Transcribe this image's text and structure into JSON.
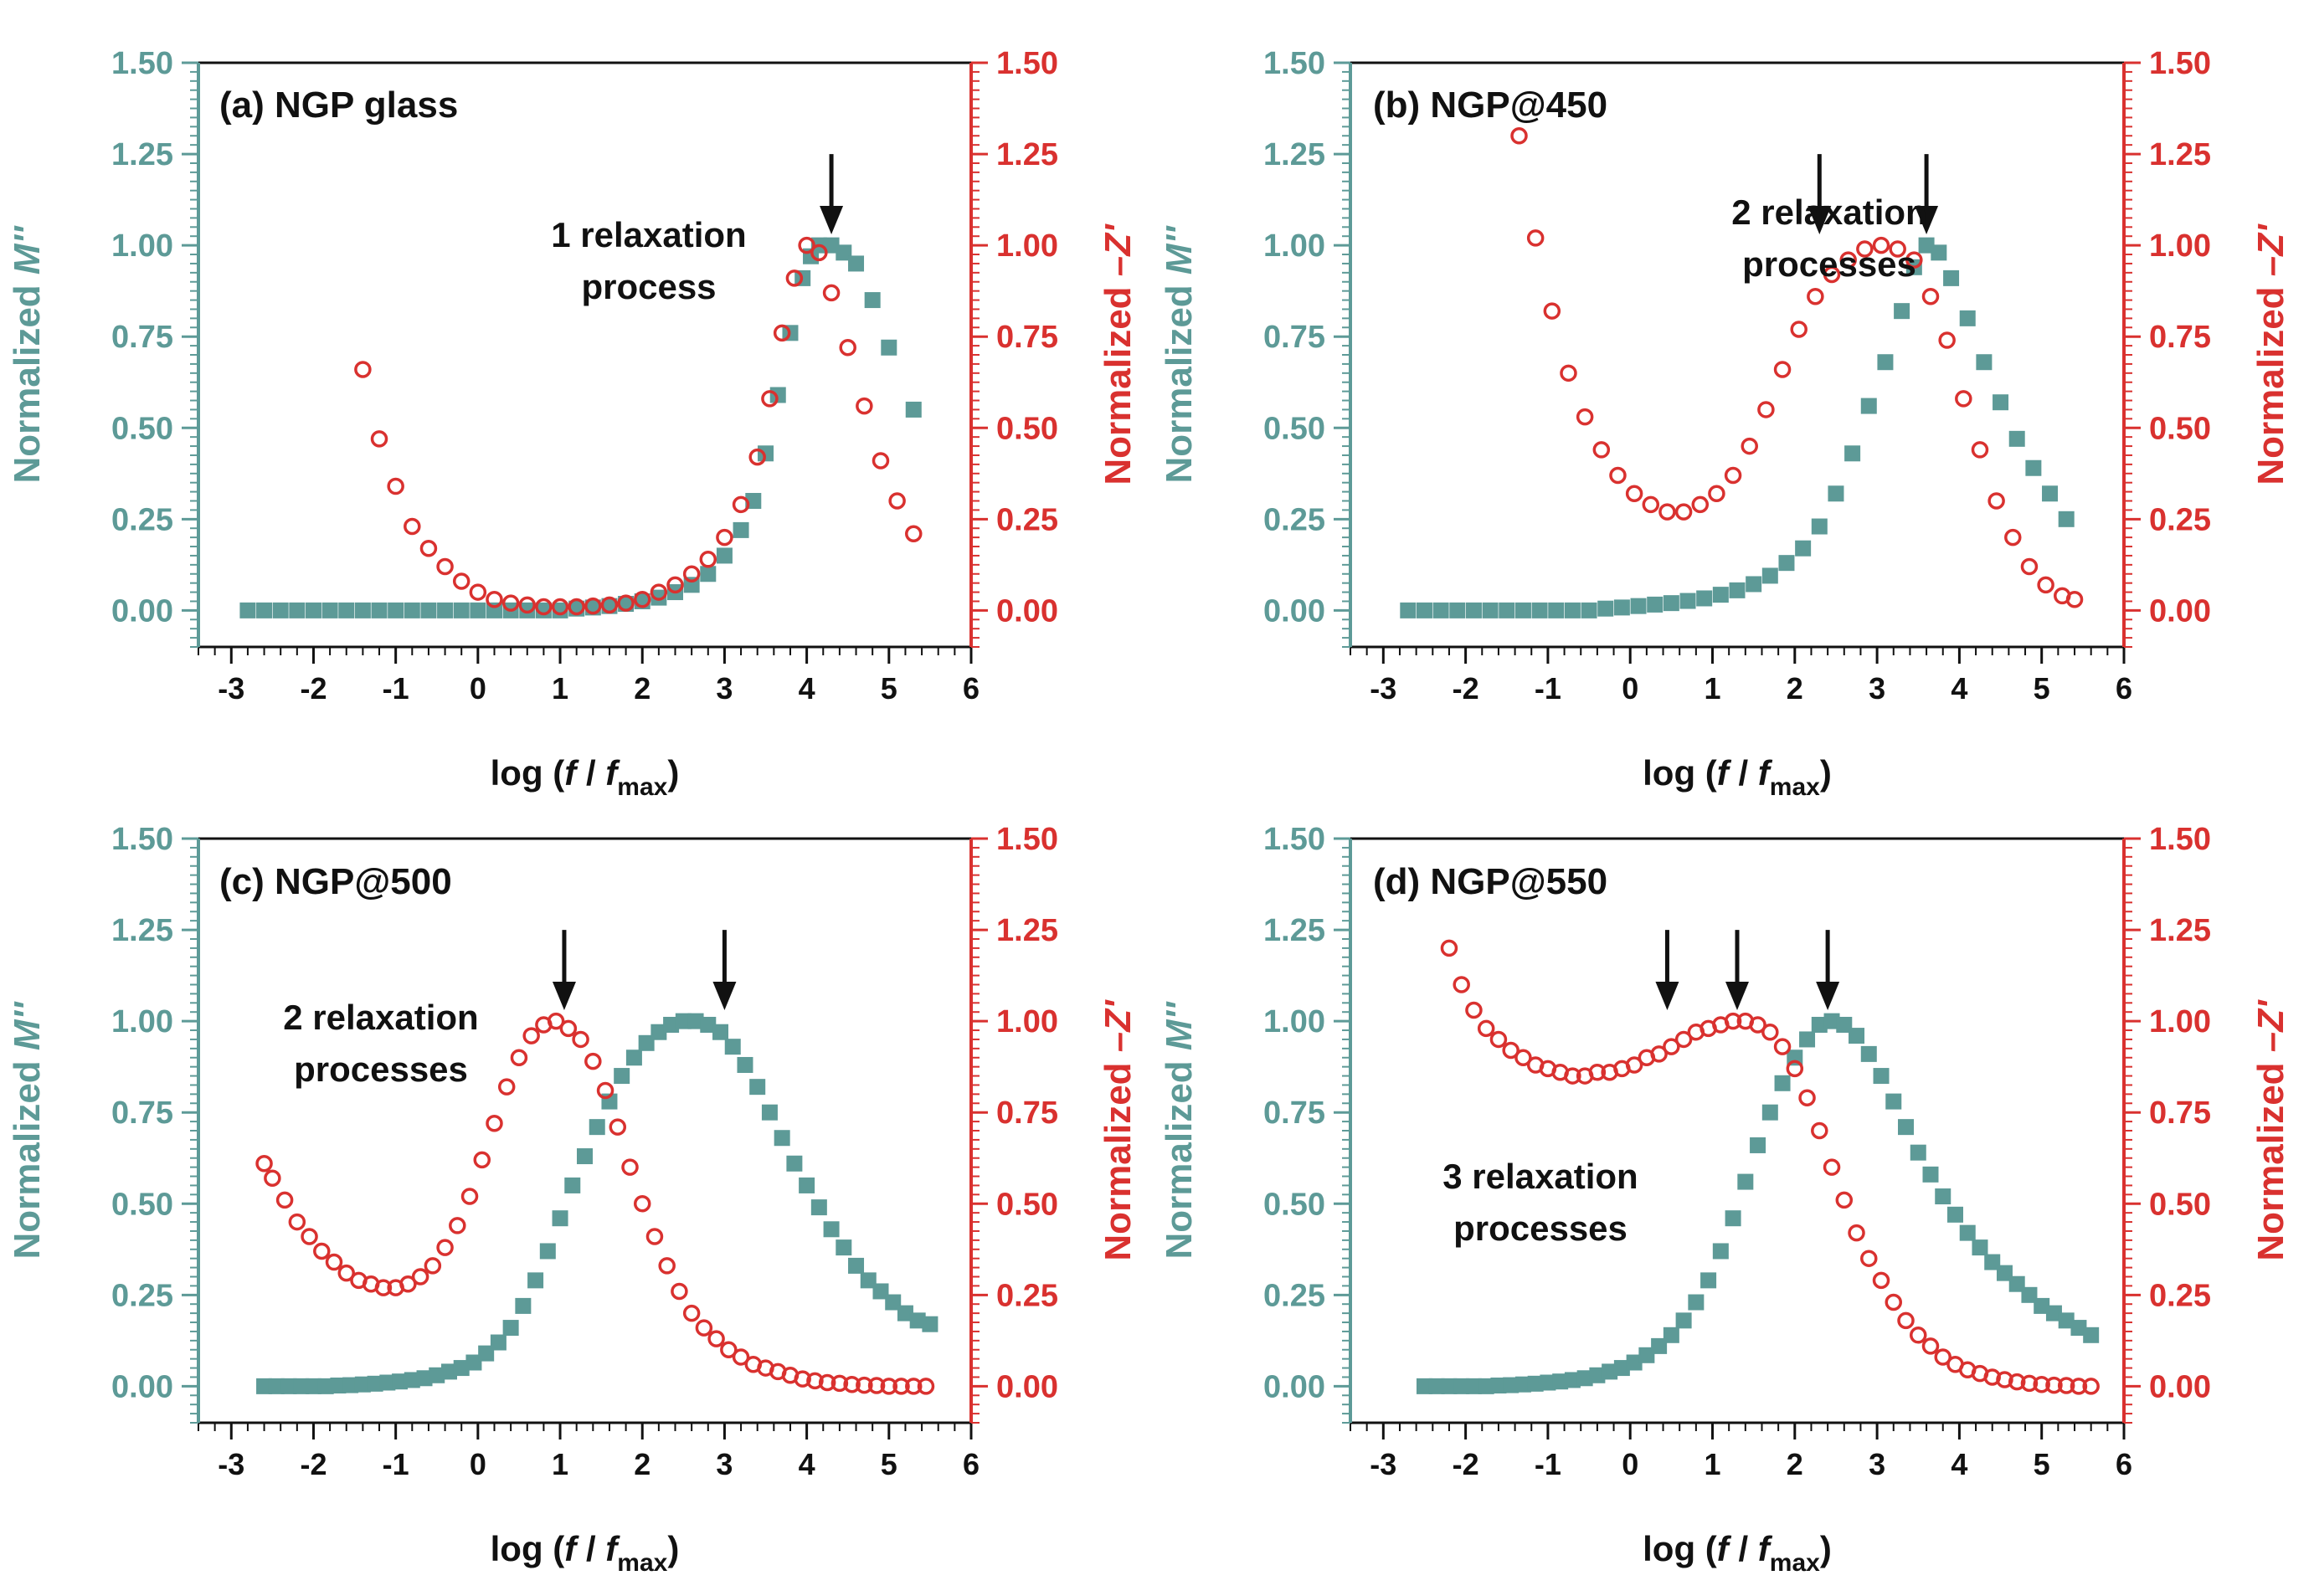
{
  "colors": {
    "teal": "#5d9a97",
    "red": "#d9312f",
    "axis": "#111111"
  },
  "chart_data": [
    {
      "type": "scatter",
      "id": "a",
      "title": "(a) NGP glass",
      "xlabel": {
        "prefix": "log (",
        "f1": "f",
        "sep": " / ",
        "f2": "f",
        "sub": "max",
        "suffix": ")"
      },
      "ylabel_left": {
        "text": "Normalized ",
        "italic": "M''"
      },
      "ylabel_right": {
        "text": "Normalized ",
        "italic": "–Z'"
      },
      "xlim": [
        -3.4,
        6
      ],
      "ylim": [
        -0.1,
        1.5
      ],
      "xticks": [
        "-3",
        "-2",
        "-1",
        "0",
        "1",
        "2",
        "3",
        "4",
        "5",
        "6"
      ],
      "yticks": [
        "0.00",
        "0.25",
        "0.50",
        "0.75",
        "1.00",
        "1.25",
        "1.50"
      ],
      "annotations": [
        {
          "lines": [
            "1 relaxation",
            "process"
          ]
        }
      ],
      "arrows": [
        4.3
      ],
      "series": [
        {
          "name": "Normalized M''",
          "axis": "left",
          "marker": "square",
          "x": [
            -2.8,
            -2.6,
            -2.4,
            -2.2,
            -2.0,
            -1.8,
            -1.6,
            -1.4,
            -1.2,
            -1.0,
            -0.8,
            -0.6,
            -0.4,
            -0.2,
            0.0,
            0.2,
            0.4,
            0.6,
            0.8,
            1.0,
            1.2,
            1.4,
            1.6,
            1.8,
            2.0,
            2.2,
            2.4,
            2.6,
            2.8,
            3.0,
            3.2,
            3.35,
            3.5,
            3.65,
            3.8,
            3.95,
            4.05,
            4.15,
            4.3,
            4.45,
            4.6,
            4.8,
            5.0,
            5.3
          ],
          "y": [
            0.0,
            0.0,
            0.0,
            0.0,
            0.0,
            0.0,
            0.0,
            0.0,
            0.0,
            0.0,
            0.0,
            0.0,
            0.0,
            0.0,
            0.0,
            0.0,
            0.0,
            0.0,
            0.0,
            0.0,
            0.005,
            0.008,
            0.012,
            0.018,
            0.025,
            0.035,
            0.05,
            0.07,
            0.1,
            0.15,
            0.22,
            0.3,
            0.43,
            0.59,
            0.76,
            0.91,
            0.97,
            1.0,
            1.0,
            0.98,
            0.95,
            0.85,
            0.72,
            0.55
          ]
        },
        {
          "name": "Normalized –Z'",
          "axis": "right",
          "marker": "circle",
          "x": [
            -1.4,
            -1.2,
            -1.0,
            -0.8,
            -0.6,
            -0.4,
            -0.2,
            0.0,
            0.2,
            0.4,
            0.6,
            0.8,
            1.0,
            1.2,
            1.4,
            1.6,
            1.8,
            2.0,
            2.2,
            2.4,
            2.6,
            2.8,
            3.0,
            3.2,
            3.4,
            3.55,
            3.7,
            3.85,
            4.0,
            4.15,
            4.3,
            4.5,
            4.7,
            4.9,
            5.1,
            5.3
          ],
          "y": [
            0.66,
            0.47,
            0.34,
            0.23,
            0.17,
            0.12,
            0.08,
            0.05,
            0.03,
            0.02,
            0.015,
            0.01,
            0.01,
            0.01,
            0.012,
            0.015,
            0.02,
            0.03,
            0.05,
            0.07,
            0.1,
            0.14,
            0.2,
            0.29,
            0.42,
            0.58,
            0.76,
            0.91,
            1.0,
            0.98,
            0.87,
            0.72,
            0.56,
            0.41,
            0.3,
            0.21
          ]
        }
      ]
    },
    {
      "type": "scatter",
      "id": "b",
      "title": "(b) NGP@450",
      "xlabel": {
        "prefix": "log (",
        "f1": "f",
        "sep": " / ",
        "f2": "f",
        "sub": "max",
        "suffix": ")"
      },
      "ylabel_left": {
        "text": "Normalized ",
        "italic": "M''"
      },
      "ylabel_right": {
        "text": "Normalized ",
        "italic": "–Z'"
      },
      "xlim": [
        -3.4,
        6
      ],
      "ylim": [
        -0.1,
        1.5
      ],
      "xticks": [
        "-3",
        "-2",
        "-1",
        "0",
        "1",
        "2",
        "3",
        "4",
        "5",
        "6"
      ],
      "yticks": [
        "0.00",
        "0.25",
        "0.50",
        "0.75",
        "1.00",
        "1.25",
        "1.50"
      ],
      "annotations": [
        {
          "lines": [
            "2 relaxation",
            "processes"
          ]
        }
      ],
      "arrows": [
        2.3,
        3.6
      ],
      "series": [
        {
          "name": "Normalized M''",
          "axis": "left",
          "marker": "square",
          "x": [
            -2.7,
            -2.5,
            -2.3,
            -2.1,
            -1.9,
            -1.7,
            -1.5,
            -1.3,
            -1.1,
            -0.9,
            -0.7,
            -0.5,
            -0.3,
            -0.1,
            0.1,
            0.3,
            0.5,
            0.7,
            0.9,
            1.1,
            1.3,
            1.5,
            1.7,
            1.9,
            2.1,
            2.3,
            2.5,
            2.7,
            2.9,
            3.1,
            3.3,
            3.45,
            3.6,
            3.75,
            3.9,
            4.1,
            4.3,
            4.5,
            4.7,
            4.9,
            5.1,
            5.3
          ],
          "y": [
            0.0,
            0.0,
            0.0,
            0.0,
            0.0,
            0.0,
            0.0,
            0.0,
            0.0,
            0.0,
            0.0,
            0.0,
            0.005,
            0.008,
            0.012,
            0.016,
            0.02,
            0.026,
            0.033,
            0.043,
            0.055,
            0.072,
            0.095,
            0.13,
            0.17,
            0.23,
            0.32,
            0.43,
            0.56,
            0.68,
            0.82,
            0.94,
            1.0,
            0.98,
            0.91,
            0.8,
            0.68,
            0.57,
            0.47,
            0.39,
            0.32,
            0.25
          ]
        },
        {
          "name": "Normalized –Z'",
          "axis": "right",
          "marker": "circle",
          "x": [
            -1.35,
            -1.15,
            -0.95,
            -0.75,
            -0.55,
            -0.35,
            -0.15,
            0.05,
            0.25,
            0.45,
            0.65,
            0.85,
            1.05,
            1.25,
            1.45,
            1.65,
            1.85,
            2.05,
            2.25,
            2.45,
            2.65,
            2.85,
            3.05,
            3.25,
            3.45,
            3.65,
            3.85,
            4.05,
            4.25,
            4.45,
            4.65,
            4.85,
            5.05,
            5.25,
            5.4
          ],
          "y": [
            1.3,
            1.02,
            0.82,
            0.65,
            0.53,
            0.44,
            0.37,
            0.32,
            0.29,
            0.27,
            0.27,
            0.29,
            0.32,
            0.37,
            0.45,
            0.55,
            0.66,
            0.77,
            0.86,
            0.92,
            0.96,
            0.99,
            1.0,
            0.99,
            0.96,
            0.86,
            0.74,
            0.58,
            0.44,
            0.3,
            0.2,
            0.12,
            0.07,
            0.04,
            0.03
          ]
        }
      ]
    },
    {
      "type": "scatter",
      "id": "c",
      "title": "(c) NGP@500",
      "xlabel": {
        "prefix": "log (",
        "f1": "f",
        "sep": " / ",
        "f2": "f",
        "sub": "max",
        "suffix": ")"
      },
      "ylabel_left": {
        "text": "Normalized ",
        "italic": "M''"
      },
      "ylabel_right": {
        "text": "Normalized ",
        "italic": "–Z'"
      },
      "xlim": [
        -3.4,
        6
      ],
      "ylim": [
        -0.1,
        1.5
      ],
      "xticks": [
        "-3",
        "-2",
        "-1",
        "0",
        "1",
        "2",
        "3",
        "4",
        "5",
        "6"
      ],
      "yticks": [
        "0.00",
        "0.25",
        "0.50",
        "0.75",
        "1.00",
        "1.25",
        "1.50"
      ],
      "annotations": [
        {
          "lines": [
            "2 relaxation",
            "processes"
          ]
        }
      ],
      "arrows": [
        1.05,
        3.0
      ],
      "series": [
        {
          "name": "Normalized M''",
          "axis": "left",
          "marker": "square",
          "x": [
            -2.6,
            -2.45,
            -2.3,
            -2.15,
            -2.0,
            -1.85,
            -1.7,
            -1.55,
            -1.4,
            -1.25,
            -1.1,
            -0.95,
            -0.8,
            -0.65,
            -0.5,
            -0.35,
            -0.2,
            -0.05,
            0.1,
            0.25,
            0.4,
            0.55,
            0.7,
            0.85,
            1.0,
            1.15,
            1.3,
            1.45,
            1.6,
            1.75,
            1.9,
            2.05,
            2.2,
            2.35,
            2.5,
            2.65,
            2.8,
            2.95,
            3.1,
            3.25,
            3.4,
            3.55,
            3.7,
            3.85,
            4.0,
            4.15,
            4.3,
            4.45,
            4.6,
            4.75,
            4.9,
            5.05,
            5.2,
            5.35,
            5.5
          ],
          "y": [
            0.0,
            0.0,
            0.0,
            0.0,
            0.0,
            0.0,
            0.002,
            0.003,
            0.005,
            0.007,
            0.01,
            0.013,
            0.017,
            0.022,
            0.03,
            0.04,
            0.05,
            0.065,
            0.09,
            0.12,
            0.16,
            0.22,
            0.29,
            0.37,
            0.46,
            0.55,
            0.63,
            0.71,
            0.78,
            0.85,
            0.9,
            0.94,
            0.97,
            0.99,
            1.0,
            1.0,
            0.99,
            0.97,
            0.93,
            0.88,
            0.82,
            0.75,
            0.68,
            0.61,
            0.55,
            0.49,
            0.43,
            0.38,
            0.33,
            0.29,
            0.26,
            0.23,
            0.2,
            0.18,
            0.17
          ]
        },
        {
          "name": "Normalized –Z'",
          "axis": "right",
          "marker": "circle",
          "x": [
            -2.6,
            -2.5,
            -2.35,
            -2.2,
            -2.05,
            -1.9,
            -1.75,
            -1.6,
            -1.45,
            -1.3,
            -1.15,
            -1.0,
            -0.85,
            -0.7,
            -0.55,
            -0.4,
            -0.25,
            -0.1,
            0.05,
            0.2,
            0.35,
            0.5,
            0.65,
            0.8,
            0.95,
            1.1,
            1.25,
            1.4,
            1.55,
            1.7,
            1.85,
            2.0,
            2.15,
            2.3,
            2.45,
            2.6,
            2.75,
            2.9,
            3.05,
            3.2,
            3.35,
            3.5,
            3.65,
            3.8,
            3.95,
            4.1,
            4.25,
            4.4,
            4.55,
            4.7,
            4.85,
            5.0,
            5.15,
            5.3,
            5.45
          ],
          "y": [
            0.61,
            0.57,
            0.51,
            0.45,
            0.41,
            0.37,
            0.34,
            0.31,
            0.29,
            0.28,
            0.27,
            0.27,
            0.28,
            0.3,
            0.33,
            0.38,
            0.44,
            0.52,
            0.62,
            0.72,
            0.82,
            0.9,
            0.96,
            0.99,
            1.0,
            0.98,
            0.95,
            0.89,
            0.81,
            0.71,
            0.6,
            0.5,
            0.41,
            0.33,
            0.26,
            0.2,
            0.16,
            0.13,
            0.1,
            0.08,
            0.06,
            0.05,
            0.04,
            0.03,
            0.02,
            0.015,
            0.01,
            0.008,
            0.005,
            0.003,
            0.002,
            0.0,
            0.0,
            0.0,
            0.0
          ]
        }
      ]
    },
    {
      "type": "scatter",
      "id": "d",
      "title": "(d) NGP@550",
      "xlabel": {
        "prefix": "log (",
        "f1": "f",
        "sep": " / ",
        "f2": "f",
        "sub": "max",
        "suffix": ")"
      },
      "ylabel_left": {
        "text": "Normalized ",
        "italic": "M''"
      },
      "ylabel_right": {
        "text": "Normalized ",
        "italic": "–Z'"
      },
      "xlim": [
        -3.4,
        6
      ],
      "ylim": [
        -0.1,
        1.5
      ],
      "xticks": [
        "-3",
        "-2",
        "-1",
        "0",
        "1",
        "2",
        "3",
        "4",
        "5",
        "6"
      ],
      "yticks": [
        "0.00",
        "0.25",
        "0.50",
        "0.75",
        "1.00",
        "1.25",
        "1.50"
      ],
      "annotations": [
        {
          "lines": [
            "3 relaxation",
            "processes"
          ]
        }
      ],
      "arrows": [
        0.45,
        1.3,
        2.4
      ],
      "series": [
        {
          "name": "Normalized M''",
          "axis": "left",
          "marker": "square",
          "x": [
            -2.5,
            -2.35,
            -2.2,
            -2.05,
            -1.9,
            -1.75,
            -1.6,
            -1.45,
            -1.3,
            -1.15,
            -1.0,
            -0.85,
            -0.7,
            -0.55,
            -0.4,
            -0.25,
            -0.1,
            0.05,
            0.2,
            0.35,
            0.5,
            0.65,
            0.8,
            0.95,
            1.1,
            1.25,
            1.4,
            1.55,
            1.7,
            1.85,
            2.0,
            2.15,
            2.3,
            2.45,
            2.6,
            2.75,
            2.9,
            3.05,
            3.2,
            3.35,
            3.5,
            3.65,
            3.8,
            3.95,
            4.1,
            4.25,
            4.4,
            4.55,
            4.7,
            4.85,
            5.0,
            5.15,
            5.3,
            5.45,
            5.6
          ],
          "y": [
            0.0,
            0.0,
            0.0,
            0.0,
            0.0,
            0.0,
            0.002,
            0.003,
            0.005,
            0.007,
            0.01,
            0.013,
            0.017,
            0.022,
            0.03,
            0.04,
            0.05,
            0.065,
            0.085,
            0.11,
            0.14,
            0.18,
            0.23,
            0.29,
            0.37,
            0.46,
            0.56,
            0.66,
            0.75,
            0.83,
            0.9,
            0.95,
            0.99,
            1.0,
            0.99,
            0.96,
            0.91,
            0.85,
            0.78,
            0.71,
            0.64,
            0.58,
            0.52,
            0.47,
            0.42,
            0.38,
            0.34,
            0.31,
            0.28,
            0.25,
            0.22,
            0.2,
            0.18,
            0.16,
            0.14
          ]
        },
        {
          "name": "Normalized –Z'",
          "axis": "right",
          "marker": "circle",
          "x": [
            -2.2,
            -2.05,
            -1.9,
            -1.75,
            -1.6,
            -1.45,
            -1.3,
            -1.15,
            -1.0,
            -0.85,
            -0.7,
            -0.55,
            -0.4,
            -0.25,
            -0.1,
            0.05,
            0.2,
            0.35,
            0.5,
            0.65,
            0.8,
            0.95,
            1.1,
            1.25,
            1.4,
            1.55,
            1.7,
            1.85,
            2.0,
            2.15,
            2.3,
            2.45,
            2.6,
            2.75,
            2.9,
            3.05,
            3.2,
            3.35,
            3.5,
            3.65,
            3.8,
            3.95,
            4.1,
            4.25,
            4.4,
            4.55,
            4.7,
            4.85,
            5.0,
            5.15,
            5.3,
            5.45,
            5.6
          ],
          "y": [
            1.2,
            1.1,
            1.03,
            0.98,
            0.95,
            0.92,
            0.9,
            0.88,
            0.87,
            0.86,
            0.85,
            0.85,
            0.86,
            0.86,
            0.87,
            0.88,
            0.9,
            0.91,
            0.93,
            0.95,
            0.97,
            0.98,
            0.99,
            1.0,
            1.0,
            0.99,
            0.97,
            0.93,
            0.87,
            0.79,
            0.7,
            0.6,
            0.51,
            0.42,
            0.35,
            0.29,
            0.23,
            0.18,
            0.14,
            0.11,
            0.08,
            0.06,
            0.045,
            0.035,
            0.025,
            0.018,
            0.012,
            0.008,
            0.005,
            0.003,
            0.002,
            0.0,
            0.0
          ]
        }
      ]
    }
  ]
}
